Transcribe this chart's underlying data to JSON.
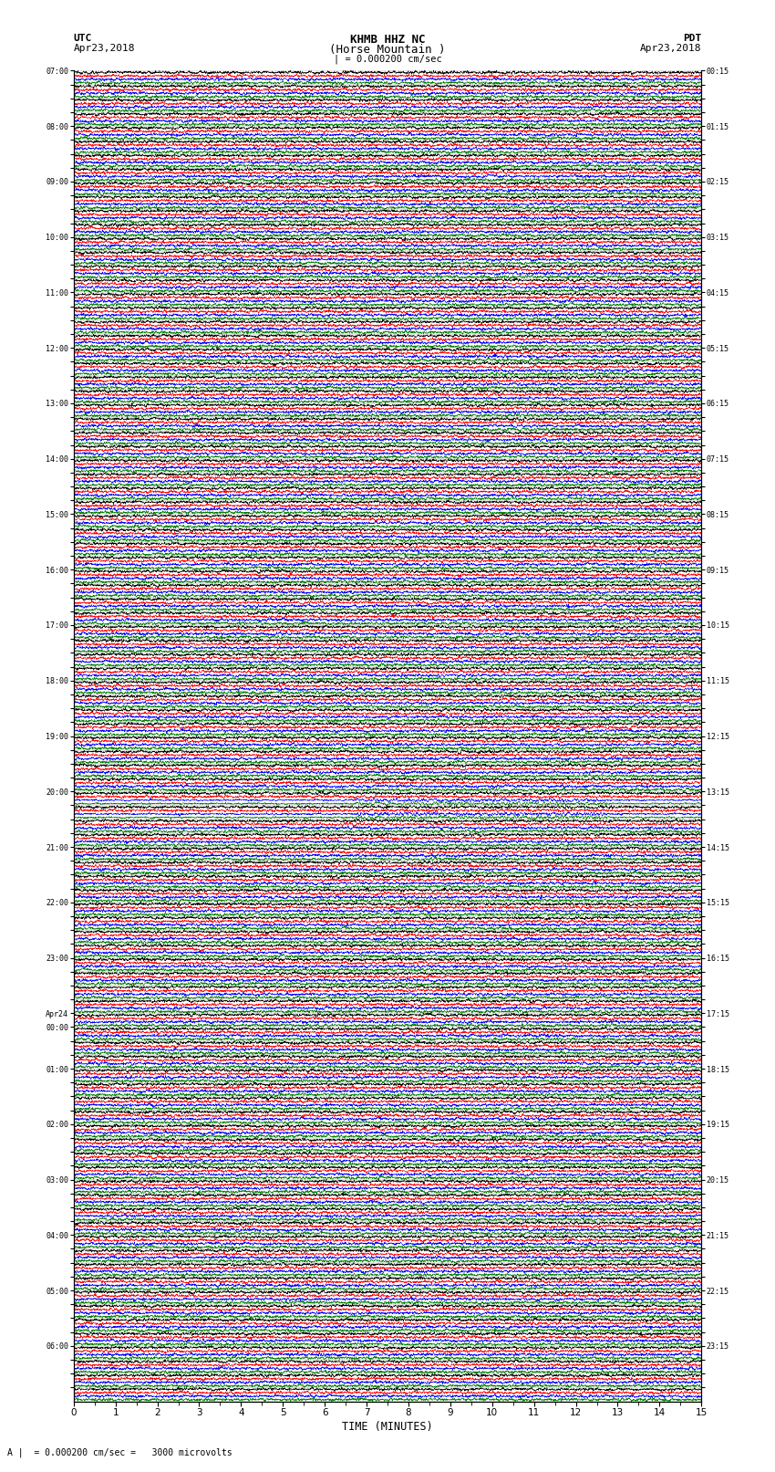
{
  "title_line1": "KHMB HHZ NC",
  "title_line2": "(Horse Mountain )",
  "title_line3": "| = 0.000200 cm/sec",
  "left_header_line1": "UTC",
  "left_header_line2": "Apr23,2018",
  "right_header_line1": "PDT",
  "right_header_line2": "Apr23,2018",
  "xlabel": "TIME (MINUTES)",
  "scale_text": "A |  = 0.000200 cm/sec =   3000 microvolts",
  "utc_labels": [
    "07:00",
    "",
    "",
    "",
    "08:00",
    "",
    "",
    "",
    "09:00",
    "",
    "",
    "",
    "10:00",
    "",
    "",
    "",
    "11:00",
    "",
    "",
    "",
    "12:00",
    "",
    "",
    "",
    "13:00",
    "",
    "",
    "",
    "14:00",
    "",
    "",
    "",
    "15:00",
    "",
    "",
    "",
    "16:00",
    "",
    "",
    "",
    "17:00",
    "",
    "",
    "",
    "18:00",
    "",
    "",
    "",
    "19:00",
    "",
    "",
    "",
    "20:00",
    "",
    "",
    "",
    "21:00",
    "",
    "",
    "",
    "22:00",
    "",
    "",
    "",
    "23:00",
    "",
    "",
    "",
    "Apr24",
    "00:00",
    "",
    "",
    "01:00",
    "",
    "",
    "",
    "02:00",
    "",
    "",
    "",
    "03:00",
    "",
    "",
    "",
    "04:00",
    "",
    "",
    "",
    "05:00",
    "",
    "",
    "",
    "06:00",
    "",
    "",
    ""
  ],
  "pdt_labels": [
    "00:15",
    "",
    "",
    "",
    "01:15",
    "",
    "",
    "",
    "02:15",
    "",
    "",
    "",
    "03:15",
    "",
    "",
    "",
    "04:15",
    "",
    "",
    "",
    "05:15",
    "",
    "",
    "",
    "06:15",
    "",
    "",
    "",
    "07:15",
    "",
    "",
    "",
    "08:15",
    "",
    "",
    "",
    "09:15",
    "",
    "",
    "",
    "10:15",
    "",
    "",
    "",
    "11:15",
    "",
    "",
    "",
    "12:15",
    "",
    "",
    "",
    "13:15",
    "",
    "",
    "",
    "14:15",
    "",
    "",
    "",
    "15:15",
    "",
    "",
    "",
    "16:15",
    "",
    "",
    "",
    "17:15",
    "",
    "",
    "",
    "18:15",
    "",
    "",
    "",
    "19:15",
    "",
    "",
    "",
    "20:15",
    "",
    "",
    "",
    "21:15",
    "",
    "",
    "",
    "22:15",
    "",
    "",
    "",
    "23:15",
    "",
    "",
    ""
  ],
  "n_rows": 96,
  "traces_per_row": 4,
  "colors": [
    "black",
    "red",
    "blue",
    "green"
  ],
  "fig_width": 8.5,
  "fig_height": 16.13,
  "bg_color": "white",
  "minutes": 15,
  "samples_per_trace": 3000,
  "special_rows_green": [
    52,
    53
  ],
  "special_rows_blue": [
    52,
    53
  ],
  "noise_seed": 12345
}
